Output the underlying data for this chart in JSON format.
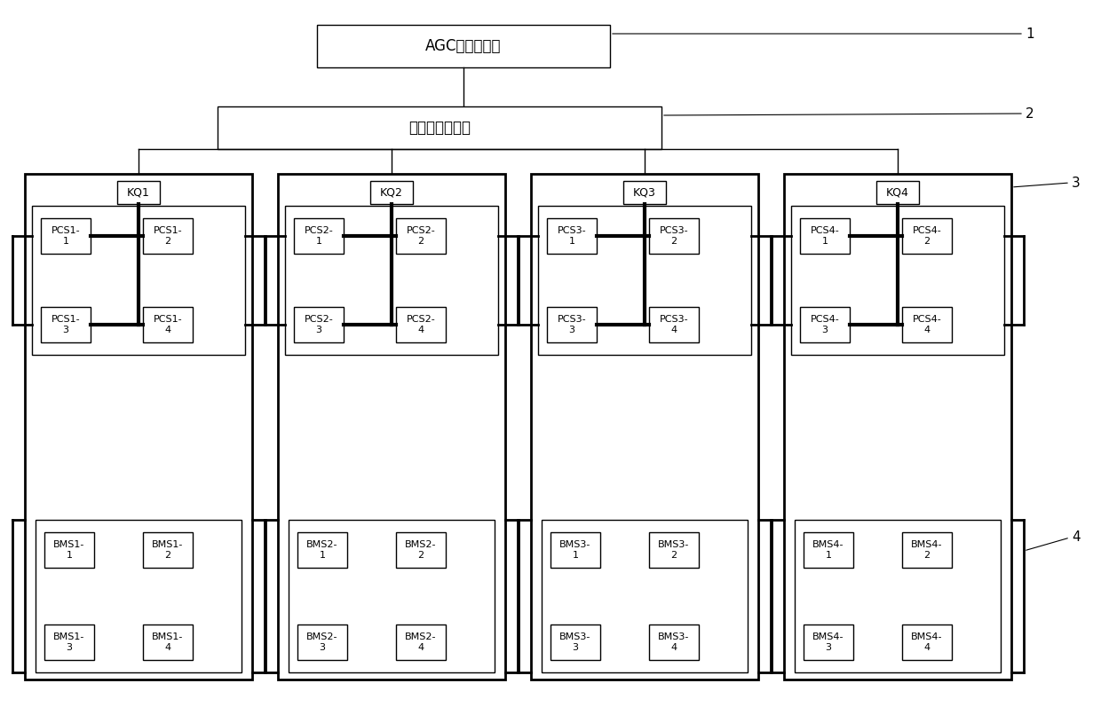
{
  "bg_color": "#ffffff",
  "title_agc": "AGC控制系统层",
  "title_storage": "储能监控系统层",
  "label_1": "1",
  "label_2": "2",
  "label_3": "3",
  "label_4": "4",
  "kq_labels": [
    "KQ1",
    "KQ2",
    "KQ3",
    "KQ4"
  ],
  "pcs_labels": [
    [
      "PCS1-\n1",
      "PCS1-\n2",
      "PCS1-\n3",
      "PCS1-\n4"
    ],
    [
      "PCS2-\n1",
      "PCS2-\n2",
      "PCS2-\n3",
      "PCS2-\n4"
    ],
    [
      "PCS3-\n1",
      "PCS3-\n2",
      "PCS3-\n3",
      "PCS3-\n4"
    ],
    [
      "PCS4-\n1",
      "PCS4-\n2",
      "PCS4-\n3",
      "PCS4-\n4"
    ]
  ],
  "bms_labels": [
    [
      "BMS1-\n1",
      "BMS1-\n2",
      "BMS1-\n3",
      "BMS1-\n4"
    ],
    [
      "BMS2-\n1",
      "BMS2-\n2",
      "BMS2-\n3",
      "BMS2-\n4"
    ],
    [
      "BMS3-\n1",
      "BMS3-\n2",
      "BMS3-\n3",
      "BMS3-\n4"
    ],
    [
      "BMS4-\n1",
      "BMS4-\n2",
      "BMS4-\n3",
      "BMS4-\n4"
    ]
  ]
}
